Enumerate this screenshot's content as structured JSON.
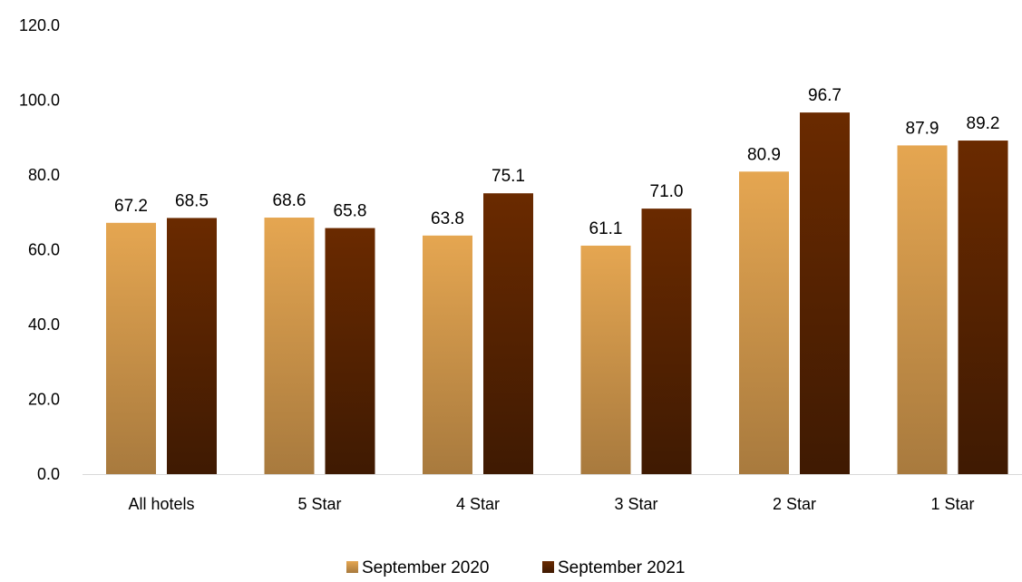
{
  "chart_data": {
    "type": "bar",
    "categories": [
      "All hotels",
      "5 Star",
      "4 Star",
      "3 Star",
      "2 Star",
      "1 Star"
    ],
    "series": [
      {
        "name": "September 2020",
        "values": [
          67.2,
          68.6,
          63.8,
          61.1,
          80.9,
          87.9
        ],
        "value_labels": [
          "67.2",
          "68.6",
          "63.8",
          "61.1",
          "80.9",
          "87.9"
        ],
        "color_top": "#E5A651",
        "color_bottom": "#A87A3E"
      },
      {
        "name": "September 2021",
        "values": [
          68.5,
          65.8,
          75.1,
          71.0,
          96.7,
          89.2
        ],
        "value_labels": [
          "68.5",
          "65.8",
          "75.1",
          "71.0",
          "96.7",
          "89.2"
        ],
        "color_top": "#6A2A00",
        "color_bottom": "#3F1A02"
      }
    ],
    "ylim": [
      0,
      120
    ],
    "y_ticks": [
      0,
      20,
      40,
      60,
      80,
      100,
      120
    ],
    "y_tick_labels": [
      "0.0",
      "20.0",
      "40.0",
      "60.0",
      "80.0",
      "100.0",
      "120.0"
    ],
    "grid": false,
    "legend_position": "bottom-center",
    "axis_color": "#D9D9D9"
  }
}
